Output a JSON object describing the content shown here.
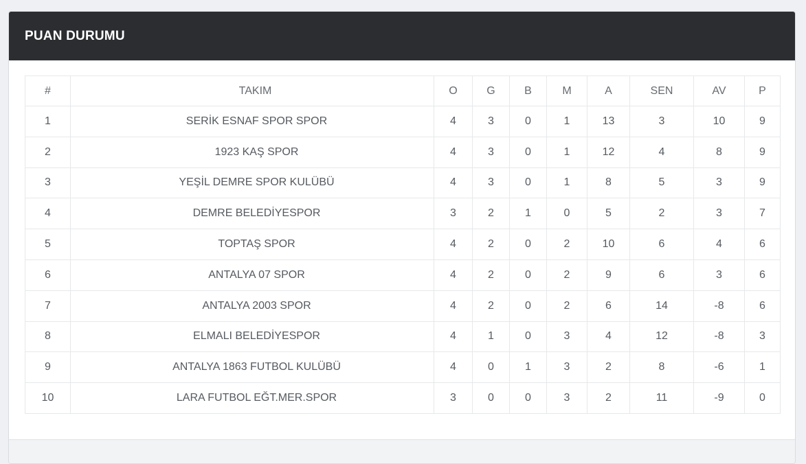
{
  "widget": {
    "title": "PUAN DURUMU"
  },
  "colors": {
    "header_bg": "#2b2d31",
    "win": "#2e8b2e",
    "draw": "#c0392b",
    "loss": "#e03030",
    "row_marker": "#000000"
  },
  "table": {
    "headers": {
      "rank": "#",
      "team": "TAKIM",
      "played": "O",
      "won": "G",
      "drawn": "B",
      "lost": "M",
      "goals_for": "A",
      "goals_against": "SEN",
      "goal_diff": "AV",
      "points": "P"
    },
    "rows": [
      {
        "rank": "1",
        "team": "SERİK ESNAF SPOR SPOR",
        "played": "4",
        "won": "3",
        "drawn": "0",
        "lost": "1",
        "goals_for": "13",
        "goals_against": "3",
        "goal_diff": "10",
        "points": "9"
      },
      {
        "rank": "2",
        "team": "1923 KAŞ SPOR",
        "played": "4",
        "won": "3",
        "drawn": "0",
        "lost": "1",
        "goals_for": "12",
        "goals_against": "4",
        "goal_diff": "8",
        "points": "9"
      },
      {
        "rank": "3",
        "team": "YEŞİL DEMRE SPOR KULÜBÜ",
        "played": "4",
        "won": "3",
        "drawn": "0",
        "lost": "1",
        "goals_for": "8",
        "goals_against": "5",
        "goal_diff": "3",
        "points": "9"
      },
      {
        "rank": "4",
        "team": "DEMRE BELEDİYESPOR",
        "played": "3",
        "won": "2",
        "drawn": "1",
        "lost": "0",
        "goals_for": "5",
        "goals_against": "2",
        "goal_diff": "3",
        "points": "7"
      },
      {
        "rank": "5",
        "team": "TOPTAŞ SPOR",
        "played": "4",
        "won": "2",
        "drawn": "0",
        "lost": "2",
        "goals_for": "10",
        "goals_against": "6",
        "goal_diff": "4",
        "points": "6"
      },
      {
        "rank": "6",
        "team": "ANTALYA 07 SPOR",
        "played": "4",
        "won": "2",
        "drawn": "0",
        "lost": "2",
        "goals_for": "9",
        "goals_against": "6",
        "goal_diff": "3",
        "points": "6"
      },
      {
        "rank": "7",
        "team": "ANTALYA 2003 SPOR",
        "played": "4",
        "won": "2",
        "drawn": "0",
        "lost": "2",
        "goals_for": "6",
        "goals_against": "14",
        "goal_diff": "-8",
        "points": "6"
      },
      {
        "rank": "8",
        "team": "ELMALI BELEDİYESPOR",
        "played": "4",
        "won": "1",
        "drawn": "0",
        "lost": "3",
        "goals_for": "4",
        "goals_against": "12",
        "goal_diff": "-8",
        "points": "3"
      },
      {
        "rank": "9",
        "team": "ANTALYA 1863 FUTBOL KULÜBÜ",
        "played": "4",
        "won": "0",
        "drawn": "1",
        "lost": "3",
        "goals_for": "2",
        "goals_against": "8",
        "goal_diff": "-6",
        "points": "1"
      },
      {
        "rank": "10",
        "team": "LARA FUTBOL EĞT.MER.SPOR",
        "played": "3",
        "won": "0",
        "drawn": "0",
        "lost": "3",
        "goals_for": "2",
        "goals_against": "11",
        "goal_diff": "-9",
        "points": "0"
      }
    ]
  }
}
